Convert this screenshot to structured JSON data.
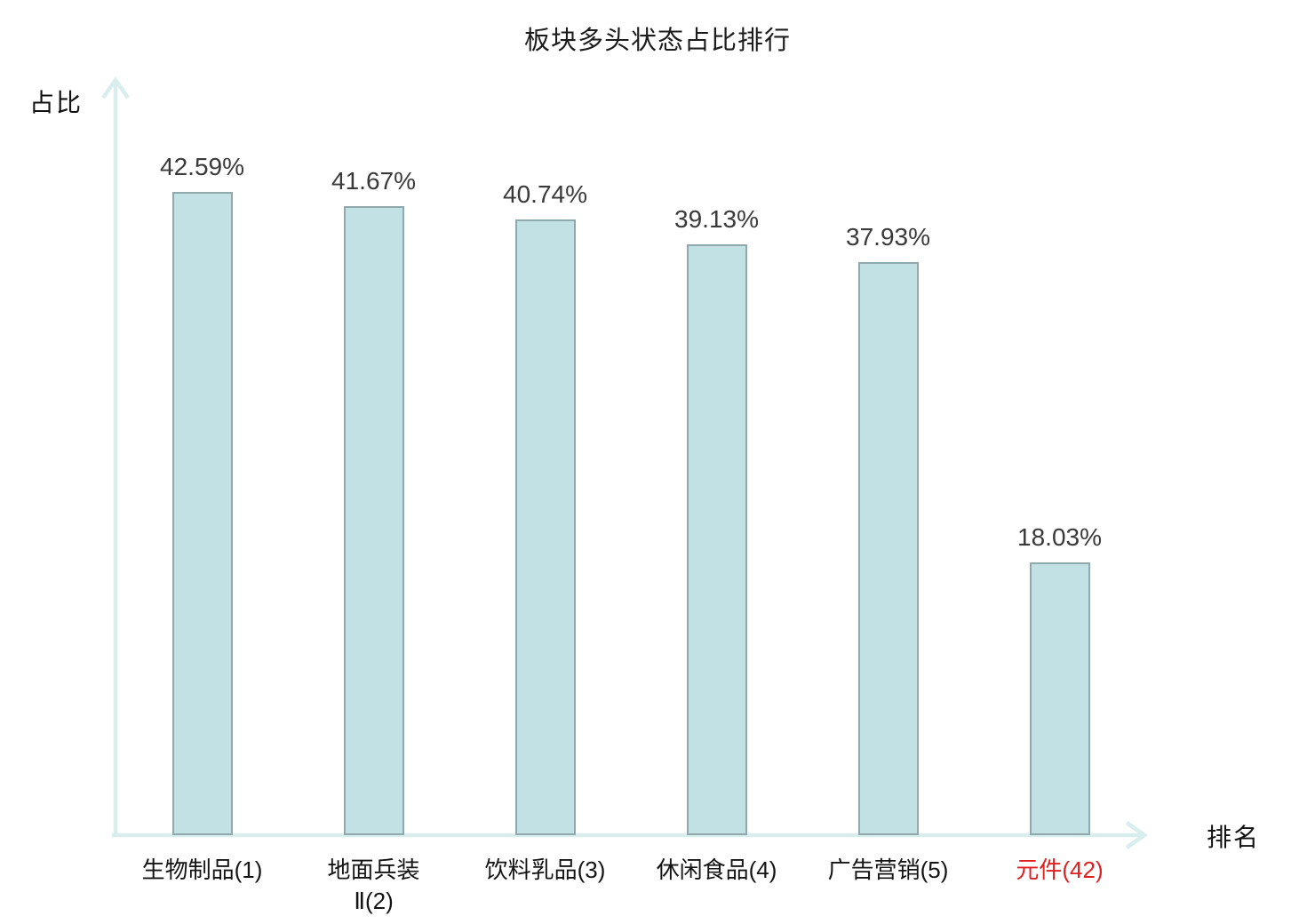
{
  "chart_data": {
    "type": "bar",
    "title": "板块多头状态占比排行",
    "xlabel": "排名",
    "ylabel": "占比",
    "categories": [
      "生物制品(1)",
      "地面兵装\nⅡ(2)",
      "饮料乳品(3)",
      "休闲食品(4)",
      "广告营销(5)",
      "元件(42)"
    ],
    "values": [
      42.59,
      41.67,
      40.74,
      39.13,
      37.93,
      18.03
    ],
    "value_labels": [
      "42.59%",
      "41.67%",
      "40.74%",
      "39.13%",
      "37.93%",
      "18.03%"
    ],
    "highlight_index": 5,
    "ylim": [
      0,
      50
    ],
    "grid": false,
    "legend": null,
    "colors": {
      "bar_fill": "#c2e1e5",
      "bar_border": "#8fa9ad",
      "axis": "#d8edec",
      "value_text": "#3a3a3a",
      "category_text": "#141414",
      "highlight_text": "#e02020",
      "title_text": "#1c1c1c"
    }
  }
}
